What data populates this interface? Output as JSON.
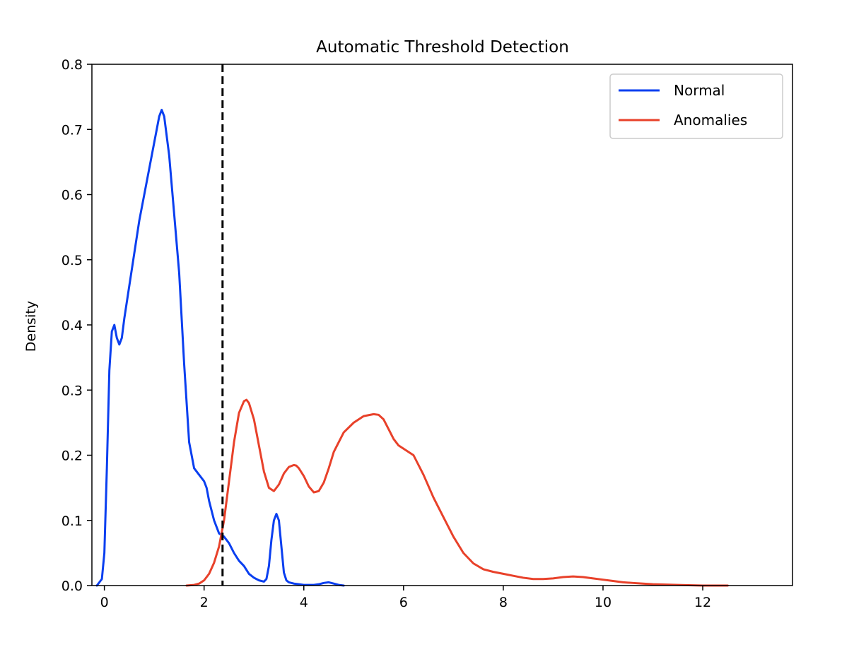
{
  "chart_data": {
    "type": "line",
    "title": "Automatic Threshold Detection",
    "xlabel": "",
    "ylabel": "Density",
    "xlim": [
      -0.25,
      13.8
    ],
    "ylim": [
      0,
      0.8
    ],
    "xticks": [
      0,
      2,
      4,
      6,
      8,
      10,
      12
    ],
    "yticks": [
      0.0,
      0.1,
      0.2,
      0.3,
      0.4,
      0.5,
      0.6,
      0.7,
      0.8
    ],
    "xtick_labels": [
      "0",
      "2",
      "4",
      "6",
      "8",
      "10",
      "12"
    ],
    "ytick_labels": [
      "0.0",
      "0.1",
      "0.2",
      "0.3",
      "0.4",
      "0.5",
      "0.6",
      "0.7",
      "0.8"
    ],
    "grid": false,
    "legend_position": "top-right",
    "threshold": {
      "x": 2.37,
      "style": "dashed",
      "color": "#000000"
    },
    "series": [
      {
        "name": "Normal",
        "color": "#0a3ff0",
        "x": [
          -0.15,
          -0.05,
          0.0,
          0.05,
          0.1,
          0.15,
          0.2,
          0.25,
          0.3,
          0.35,
          0.4,
          0.5,
          0.6,
          0.7,
          0.8,
          0.9,
          1.0,
          1.1,
          1.15,
          1.2,
          1.3,
          1.4,
          1.5,
          1.6,
          1.7,
          1.8,
          1.9,
          2.0,
          2.05,
          2.1,
          2.2,
          2.3,
          2.4,
          2.5,
          2.6,
          2.7,
          2.8,
          2.9,
          3.0,
          3.1,
          3.2,
          3.25,
          3.3,
          3.35,
          3.4,
          3.45,
          3.5,
          3.55,
          3.6,
          3.65,
          3.7,
          3.8,
          3.9,
          4.0,
          4.1,
          4.2,
          4.3,
          4.4,
          4.5,
          4.6,
          4.7,
          4.8
        ],
        "y": [
          0.0,
          0.01,
          0.05,
          0.18,
          0.33,
          0.39,
          0.4,
          0.38,
          0.37,
          0.38,
          0.41,
          0.46,
          0.51,
          0.56,
          0.6,
          0.64,
          0.68,
          0.72,
          0.73,
          0.72,
          0.66,
          0.57,
          0.48,
          0.34,
          0.22,
          0.18,
          0.17,
          0.16,
          0.15,
          0.13,
          0.1,
          0.08,
          0.075,
          0.065,
          0.05,
          0.038,
          0.03,
          0.018,
          0.012,
          0.008,
          0.006,
          0.01,
          0.03,
          0.07,
          0.1,
          0.11,
          0.1,
          0.06,
          0.02,
          0.008,
          0.005,
          0.003,
          0.002,
          0.001,
          0.001,
          0.001,
          0.002,
          0.004,
          0.005,
          0.003,
          0.001,
          0.0
        ]
      },
      {
        "name": "Anomalies",
        "color": "#e8412a",
        "x": [
          1.65,
          1.8,
          1.9,
          2.0,
          2.1,
          2.2,
          2.3,
          2.4,
          2.5,
          2.6,
          2.7,
          2.8,
          2.85,
          2.9,
          3.0,
          3.1,
          3.2,
          3.3,
          3.4,
          3.5,
          3.6,
          3.7,
          3.8,
          3.85,
          3.9,
          4.0,
          4.1,
          4.2,
          4.3,
          4.4,
          4.5,
          4.6,
          4.8,
          5.0,
          5.2,
          5.4,
          5.5,
          5.6,
          5.7,
          5.8,
          5.9,
          6.0,
          6.2,
          6.4,
          6.6,
          6.8,
          7.0,
          7.2,
          7.4,
          7.6,
          7.8,
          8.0,
          8.2,
          8.4,
          8.6,
          8.8,
          9.0,
          9.2,
          9.4,
          9.6,
          9.8,
          10.0,
          10.2,
          10.4,
          10.6,
          10.8,
          11.0,
          11.5,
          12.0,
          12.5
        ],
        "y": [
          0.0,
          0.001,
          0.003,
          0.008,
          0.018,
          0.035,
          0.06,
          0.1,
          0.16,
          0.22,
          0.265,
          0.283,
          0.285,
          0.28,
          0.255,
          0.215,
          0.175,
          0.15,
          0.145,
          0.155,
          0.172,
          0.182,
          0.185,
          0.184,
          0.18,
          0.168,
          0.152,
          0.143,
          0.145,
          0.158,
          0.18,
          0.205,
          0.235,
          0.25,
          0.26,
          0.263,
          0.262,
          0.255,
          0.24,
          0.225,
          0.215,
          0.21,
          0.2,
          0.17,
          0.135,
          0.105,
          0.075,
          0.05,
          0.034,
          0.025,
          0.021,
          0.018,
          0.015,
          0.012,
          0.01,
          0.01,
          0.011,
          0.013,
          0.014,
          0.013,
          0.011,
          0.009,
          0.007,
          0.005,
          0.004,
          0.003,
          0.002,
          0.001,
          0.0,
          0.0
        ]
      }
    ]
  }
}
